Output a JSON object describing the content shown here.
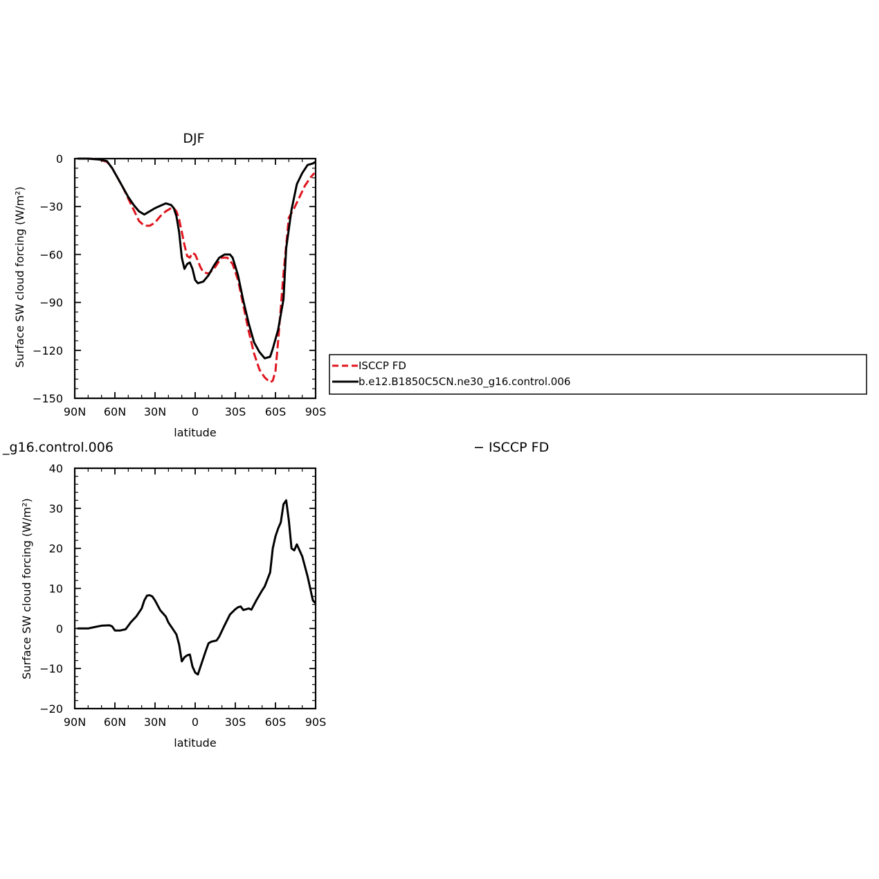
{
  "chart_data": [
    {
      "type": "line",
      "title": "DJF",
      "xlabel": "latitude",
      "ylabel": "Surface SW cloud forcing (W/m²)",
      "x_ticks": [
        90,
        60,
        30,
        0,
        -30,
        -60,
        -90
      ],
      "x_tick_labels": [
        "90N",
        "60N",
        "30N",
        "0",
        "30S",
        "60S",
        "90S"
      ],
      "xlim": [
        90,
        -90
      ],
      "ylim": [
        -150,
        0
      ],
      "y_ticks": [
        0,
        -30,
        -60,
        -90,
        -120,
        -150
      ],
      "y_tick_labels": [
        "0",
        "−30",
        "−60",
        "−90",
        "−120",
        "−150"
      ],
      "legend": {
        "placement": "right",
        "entries": [
          "ISCCP FD",
          "b.e12.B1850C5CN.ne30_g16.control.006"
        ]
      },
      "series": [
        {
          "name": "ISCCP FD",
          "color": "#e0141e",
          "dash": "dashed",
          "points": [
            [
              88,
              0
            ],
            [
              80,
              0
            ],
            [
              72,
              -0.5
            ],
            [
              66,
              -2
            ],
            [
              62,
              -6
            ],
            [
              58,
              -12
            ],
            [
              54,
              -18
            ],
            [
              50,
              -25
            ],
            [
              46,
              -32
            ],
            [
              42,
              -39
            ],
            [
              38,
              -42
            ],
            [
              34,
              -42
            ],
            [
              30,
              -40
            ],
            [
              26,
              -36
            ],
            [
              22,
              -33
            ],
            [
              18,
              -31
            ],
            [
              16,
              -31
            ],
            [
              14,
              -33
            ],
            [
              12,
              -38
            ],
            [
              10,
              -46
            ],
            [
              8,
              -54
            ],
            [
              6,
              -61
            ],
            [
              4,
              -62
            ],
            [
              2,
              -59
            ],
            [
              0,
              -60
            ],
            [
              -2,
              -64
            ],
            [
              -4,
              -68
            ],
            [
              -6,
              -71
            ],
            [
              -10,
              -72
            ],
            [
              -14,
              -69
            ],
            [
              -18,
              -64
            ],
            [
              -20,
              -62
            ],
            [
              -24,
              -62
            ],
            [
              -28,
              -66
            ],
            [
              -32,
              -76
            ],
            [
              -36,
              -92
            ],
            [
              -40,
              -108
            ],
            [
              -44,
              -122
            ],
            [
              -48,
              -132
            ],
            [
              -52,
              -137
            ],
            [
              -56,
              -140
            ],
            [
              -58,
              -139
            ],
            [
              -60,
              -133
            ],
            [
              -62,
              -114
            ],
            [
              -66,
              -72
            ],
            [
              -70,
              -37
            ],
            [
              -74,
              -31
            ],
            [
              -78,
              -24
            ],
            [
              -82,
              -17
            ],
            [
              -86,
              -12
            ],
            [
              -89,
              -9
            ]
          ]
        },
        {
          "name": "b.e12.B1850C5CN.ne30_g16.control.006",
          "color": "#000000",
          "dash": "solid",
          "points": [
            [
              88,
              0
            ],
            [
              80,
              0
            ],
            [
              72,
              -0.5
            ],
            [
              66,
              -1.5
            ],
            [
              62,
              -6
            ],
            [
              58,
              -12
            ],
            [
              54,
              -18
            ],
            [
              50,
              -24
            ],
            [
              46,
              -29
            ],
            [
              42,
              -33
            ],
            [
              38,
              -35
            ],
            [
              34,
              -33
            ],
            [
              30,
              -31
            ],
            [
              26,
              -29.5
            ],
            [
              22,
              -28
            ],
            [
              18,
              -29
            ],
            [
              16,
              -31
            ],
            [
              14,
              -36
            ],
            [
              12,
              -46
            ],
            [
              10,
              -62
            ],
            [
              8,
              -69
            ],
            [
              6,
              -66
            ],
            [
              4,
              -65
            ],
            [
              2,
              -69
            ],
            [
              0,
              -76
            ],
            [
              -2,
              -78
            ],
            [
              -6,
              -77
            ],
            [
              -10,
              -73
            ],
            [
              -14,
              -67
            ],
            [
              -18,
              -62
            ],
            [
              -22,
              -60
            ],
            [
              -26,
              -60
            ],
            [
              -28,
              -62
            ],
            [
              -32,
              -73
            ],
            [
              -36,
              -89
            ],
            [
              -40,
              -103
            ],
            [
              -44,
              -115
            ],
            [
              -48,
              -121
            ],
            [
              -52,
              -125
            ],
            [
              -56,
              -124
            ],
            [
              -58,
              -119
            ],
            [
              -62,
              -107
            ],
            [
              -66,
              -88
            ],
            [
              -68,
              -56
            ],
            [
              -72,
              -32
            ],
            [
              -76,
              -16
            ],
            [
              -80,
              -9
            ],
            [
              -84,
              -4
            ],
            [
              -88,
              -3
            ],
            [
              -90,
              -2
            ]
          ]
        }
      ]
    },
    {
      "type": "line",
      "title": "_g16.control.006",
      "title_right": "− ISCCP FD",
      "xlabel": "latitude",
      "ylabel": "Surface SW cloud forcing (W/m²)",
      "x_ticks": [
        90,
        60,
        30,
        0,
        -30,
        -60,
        -90
      ],
      "x_tick_labels": [
        "90N",
        "60N",
        "30N",
        "0",
        "30S",
        "60S",
        "90S"
      ],
      "xlim": [
        90,
        -90
      ],
      "ylim": [
        -20,
        40
      ],
      "y_ticks": [
        40,
        30,
        20,
        10,
        0,
        -10,
        -20
      ],
      "y_tick_labels": [
        "40",
        "30",
        "20",
        "10",
        "0",
        "−10",
        "−20"
      ],
      "series": [
        {
          "color": "#000000",
          "dash": "solid",
          "points": [
            [
              88,
              0
            ],
            [
              80,
              0
            ],
            [
              76,
              0.3
            ],
            [
              70,
              0.7
            ],
            [
              64,
              0.8
            ],
            [
              62,
              0.5
            ],
            [
              60,
              -0.5
            ],
            [
              56,
              -0.5
            ],
            [
              52,
              -0.2
            ],
            [
              48,
              1.6
            ],
            [
              44,
              3
            ],
            [
              40,
              5
            ],
            [
              38,
              7
            ],
            [
              36,
              8.2
            ],
            [
              34,
              8.3
            ],
            [
              32,
              8
            ],
            [
              30,
              7
            ],
            [
              26,
              4.5
            ],
            [
              22,
              3
            ],
            [
              20,
              1.5
            ],
            [
              16,
              -0.5
            ],
            [
              14,
              -1.5
            ],
            [
              12,
              -4
            ],
            [
              10,
              -8.2
            ],
            [
              8,
              -7.2
            ],
            [
              6,
              -6.7
            ],
            [
              4,
              -6.5
            ],
            [
              2,
              -9.5
            ],
            [
              0,
              -11
            ],
            [
              -2,
              -11.5
            ],
            [
              -4,
              -9.5
            ],
            [
              -8,
              -5.5
            ],
            [
              -10,
              -3.7
            ],
            [
              -12,
              -3.3
            ],
            [
              -16,
              -3
            ],
            [
              -18,
              -2
            ],
            [
              -22,
              0.8
            ],
            [
              -26,
              3.5
            ],
            [
              -30,
              4.8
            ],
            [
              -32,
              5.3
            ],
            [
              -34,
              5.5
            ],
            [
              -36,
              4.6
            ],
            [
              -40,
              5
            ],
            [
              -42,
              4.7
            ],
            [
              -46,
              7.2
            ],
            [
              -50,
              9.5
            ],
            [
              -52,
              10.5
            ],
            [
              -56,
              14
            ],
            [
              -58,
              20
            ],
            [
              -60,
              23
            ],
            [
              -62,
              25
            ],
            [
              -64,
              26.5
            ],
            [
              -66,
              31
            ],
            [
              -68,
              32
            ],
            [
              -70,
              27
            ],
            [
              -72,
              20
            ],
            [
              -74,
              19.5
            ],
            [
              -76,
              21
            ],
            [
              -80,
              18
            ],
            [
              -84,
              13
            ],
            [
              -88,
              7
            ],
            [
              -90,
              6.3
            ]
          ]
        }
      ]
    }
  ]
}
